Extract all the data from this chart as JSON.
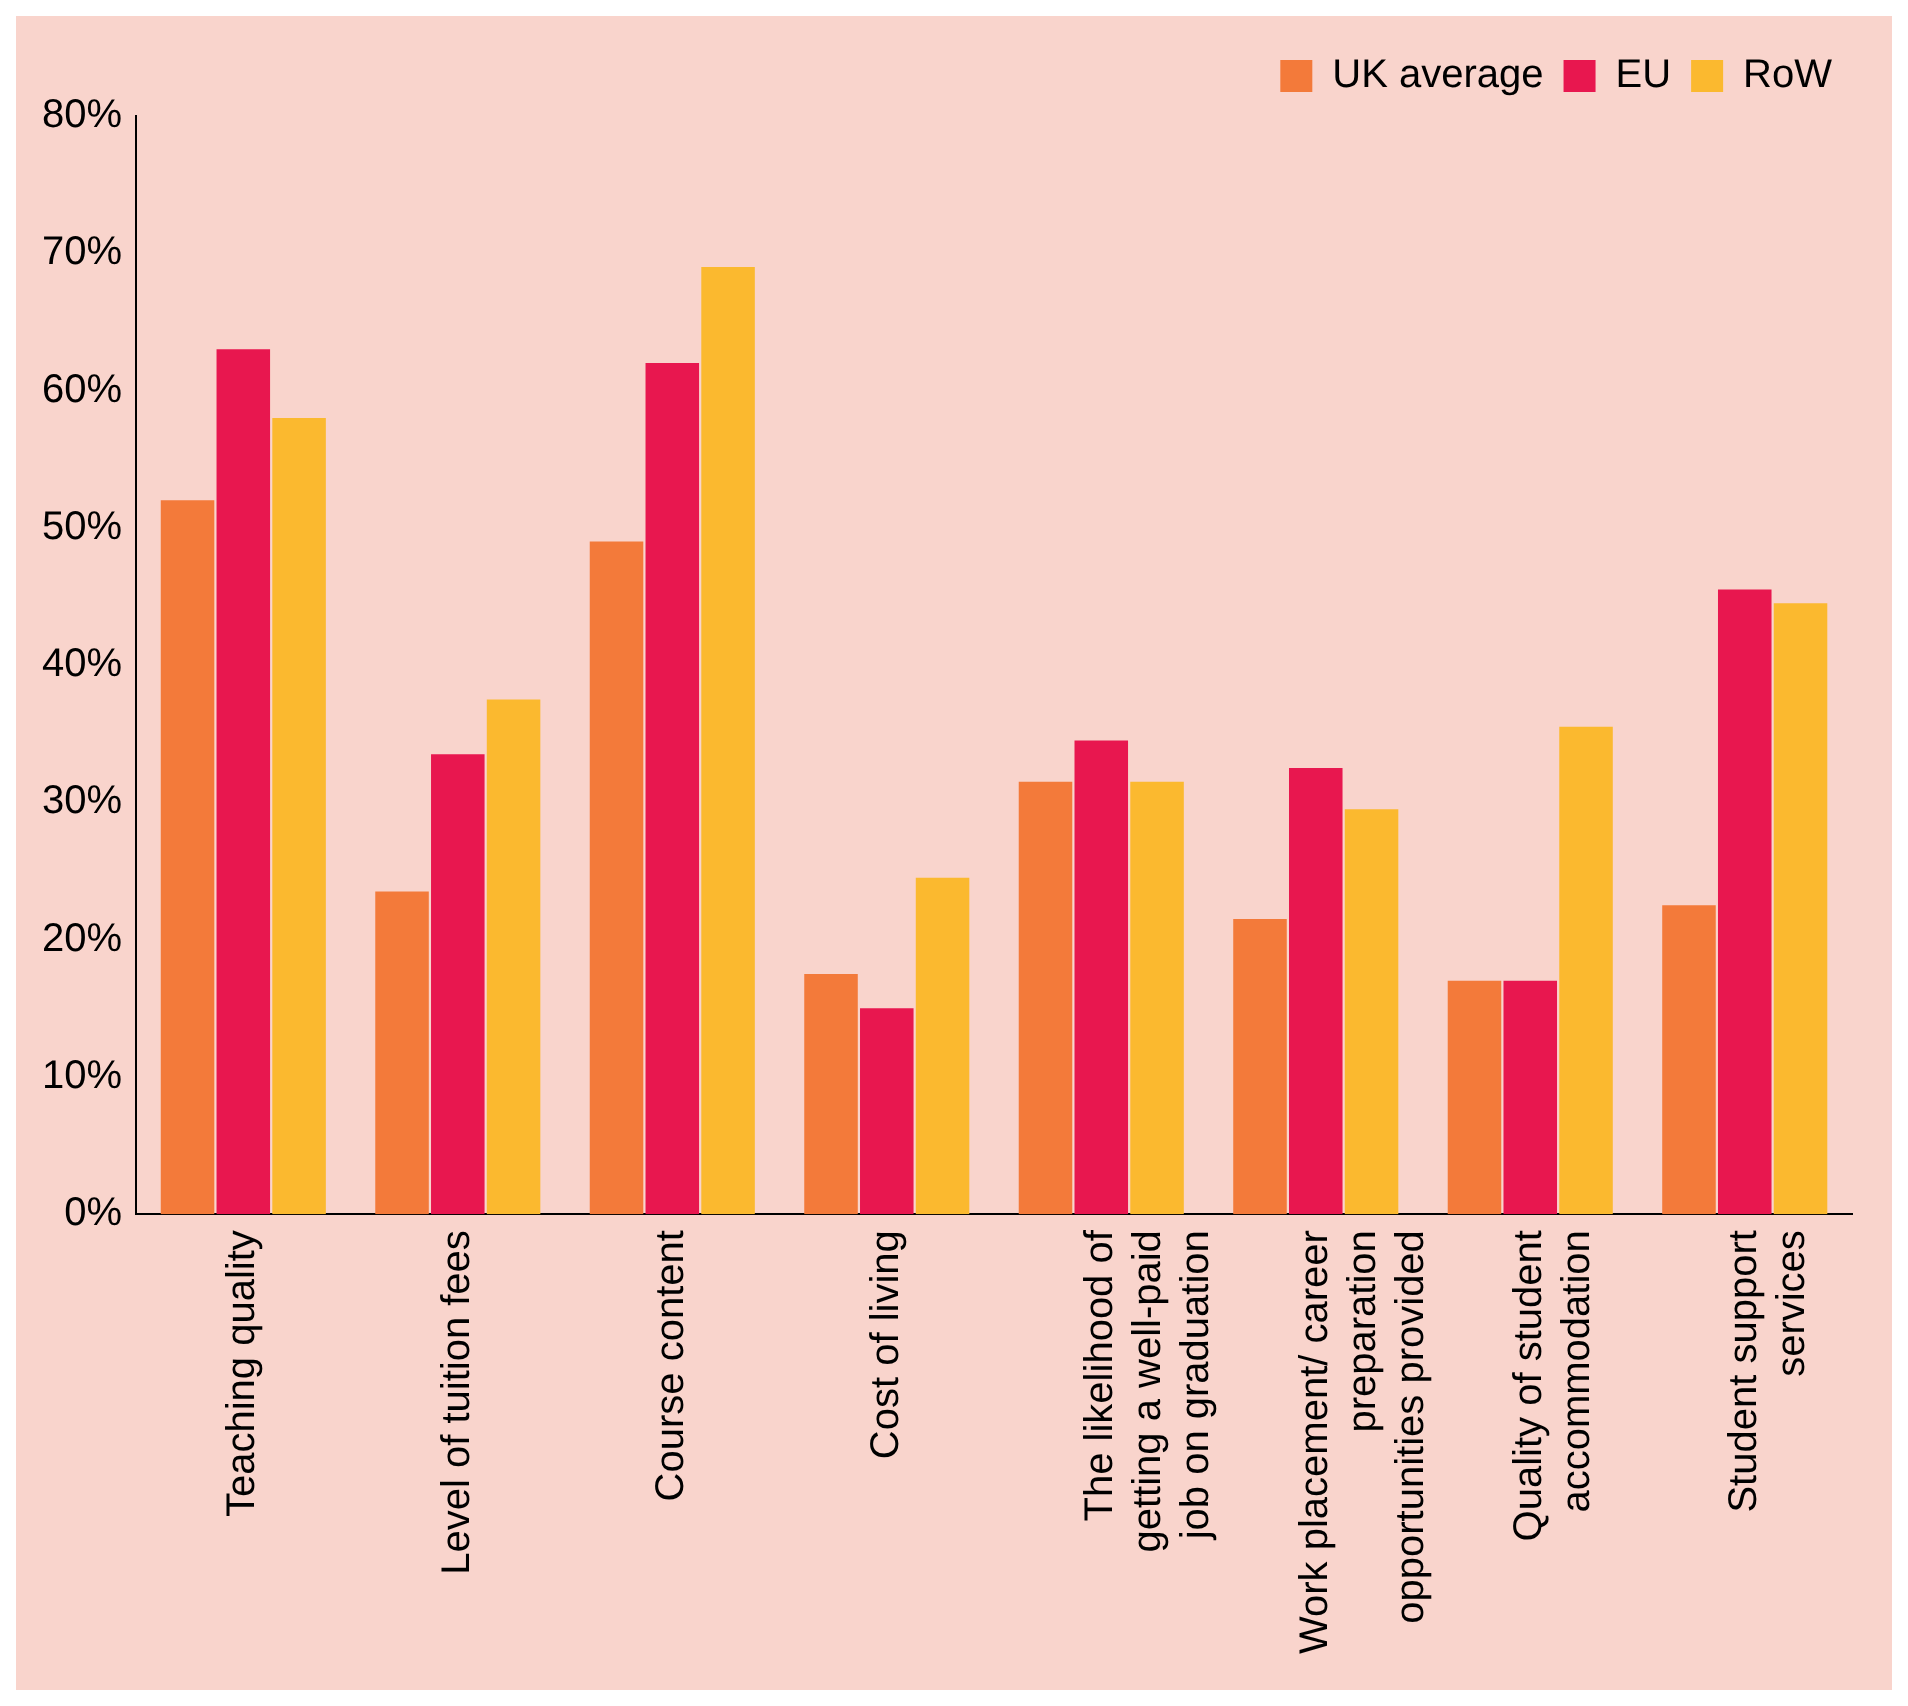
{
  "chart_data": {
    "type": "bar",
    "categories": [
      "Teaching quality",
      "Level of tuition fees",
      "Course content",
      "Cost of living",
      "The likelihood of getting a well-paid job on graduation",
      "Work placement/ career preparation opportunities provided",
      "Quality of student accommodation",
      "Student support services"
    ],
    "series": [
      {
        "name": "UK average",
        "color": "#f37a3a",
        "values": [
          52,
          23.5,
          49,
          17.5,
          31.5,
          21.5,
          17,
          22.5
        ]
      },
      {
        "name": "EU",
        "color": "#e8174f",
        "values": [
          63,
          33.5,
          62,
          15,
          34.5,
          32.5,
          17,
          45.5
        ]
      },
      {
        "name": "RoW",
        "color": "#fbb92f",
        "values": [
          58,
          37.5,
          69,
          24.5,
          31.5,
          29.5,
          35.5,
          44.5
        ]
      }
    ],
    "ylim": [
      0,
      80
    ],
    "yticks": [
      {
        "value": 0,
        "label": "0%"
      },
      {
        "value": 10,
        "label": "10%"
      },
      {
        "value": 20,
        "label": "20%"
      },
      {
        "value": 30,
        "label": "30%"
      },
      {
        "value": 40,
        "label": "40%"
      },
      {
        "value": 50,
        "label": "50%"
      },
      {
        "value": 60,
        "label": "60%"
      },
      {
        "value": 70,
        "label": "70%"
      },
      {
        "value": 80,
        "label": "80%"
      }
    ],
    "grid": false,
    "legend": "top right"
  }
}
